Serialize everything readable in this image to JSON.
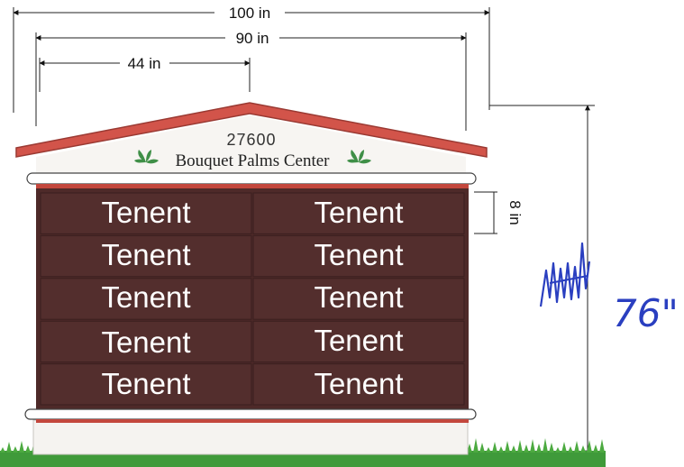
{
  "sign": {
    "address": "27600",
    "center_name": "Bouquet Palms Center",
    "tenants": [
      [
        "Tenent",
        "Tenent"
      ],
      [
        "Tenent",
        "Tenent"
      ],
      [
        "Tenent",
        "Tenent"
      ],
      [
        "Tenent",
        "Tenent"
      ],
      [
        "Tenent",
        "Tenent"
      ]
    ]
  },
  "dimensions": {
    "overall_width": "100 in",
    "cabinet_width": "90 in",
    "panel_width": "44 in",
    "panel_height": "8 in",
    "total_height": "76 in"
  },
  "annotation": {
    "handwritten": "76\""
  },
  "colors": {
    "panel": "#4e2a29",
    "roof": "#d2544a",
    "roof_trim": "#9a3a33",
    "text_on_panel": "#ffffff",
    "grass": "#3f9a3a",
    "ink": "#2a3fc0",
    "leaf": "#3f8f47"
  }
}
